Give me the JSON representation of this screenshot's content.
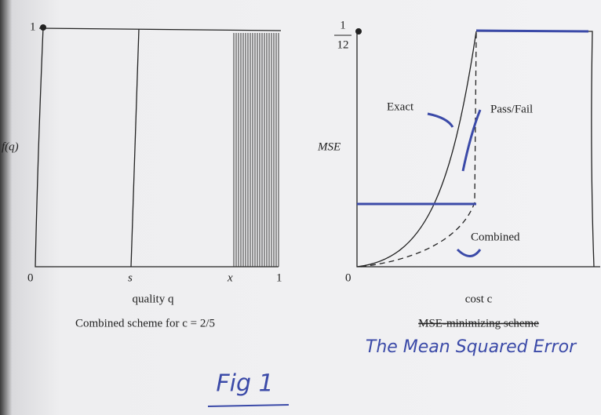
{
  "left_panel": {
    "y_tick_top": "1",
    "y_label": "f(q)",
    "x_ticks": [
      "0",
      "s",
      "x",
      "1"
    ],
    "x_label": "quality q",
    "caption": "Combined scheme for c = 2/5"
  },
  "right_panel": {
    "y_tick_top_numerator": "1",
    "y_tick_top_denominator": "12",
    "y_label": "MSE",
    "y_tick_bottom": "0",
    "x_label": "cost c",
    "curve_labels": [
      "Exact",
      "Pass/Fail",
      "Combined"
    ],
    "caption_struck": "MSE-minimizing scheme",
    "caption_handwritten": "The Mean Squared Error"
  },
  "footer_handwritten": "Fig 1"
}
